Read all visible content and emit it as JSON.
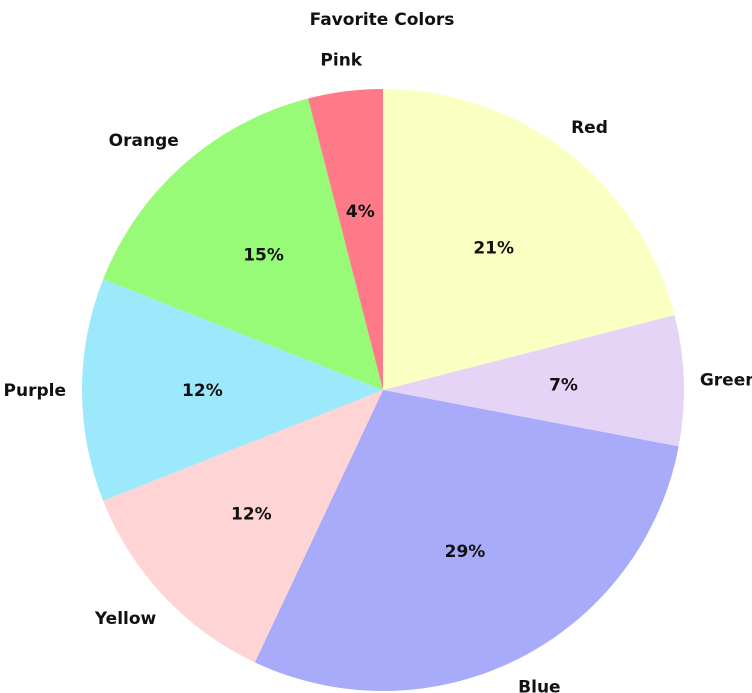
{
  "chart_data": {
    "type": "pie",
    "title": "Favorite Colors",
    "start": "12 o'clock",
    "direction": "clockwise",
    "slices": [
      {
        "label": "Red",
        "value": 21,
        "value_label": "21%",
        "color": "#FAFFC2"
      },
      {
        "label": "Green",
        "value": 7,
        "value_label": "7%",
        "color": "#E6D4F7"
      },
      {
        "label": "Blue",
        "value": 29,
        "value_label": "29%",
        "color": "#A8ABF9"
      },
      {
        "label": "Yellow",
        "value": 12,
        "value_label": "12%",
        "color": "#FFD4D4"
      },
      {
        "label": "Purple",
        "value": 12,
        "value_label": "12%",
        "color": "#9CE9FB"
      },
      {
        "label": "Orange",
        "value": 15,
        "value_label": "15%",
        "color": "#97FB78"
      },
      {
        "label": "Pink",
        "value": 4,
        "value_label": "4%",
        "color": "#FF7A88"
      }
    ]
  }
}
